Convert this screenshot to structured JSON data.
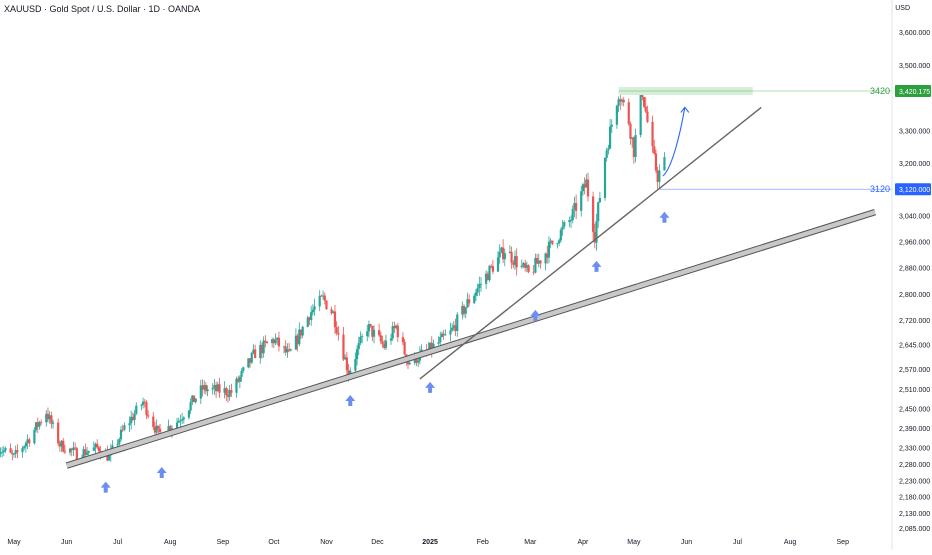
{
  "header": {
    "symbol_title": "XAUUSD · Gold Spot / U.S. Dollar · 1D · OANDA",
    "currency": "USD"
  },
  "colors": {
    "up": "#26a69a",
    "down": "#ef5350",
    "support_line": "#b5b5b5",
    "trend_line": "#666666",
    "arrow": "#6b8ef0",
    "target": "#2e9f3d",
    "stop": "#2962ff",
    "target_zone": "#d6efd8",
    "axis_text": "#131722"
  },
  "chart_data": {
    "type": "candlestick",
    "symbol": "XAUUSD",
    "timeframe": "1D",
    "x_range": [
      "2024-05-01",
      "2025-09-30"
    ],
    "ylim": [
      2060,
      3680
    ],
    "y_ticks": [
      {
        "value": 3600,
        "label": "3,600.000"
      },
      {
        "value": 3500,
        "label": "3,500.000"
      },
      {
        "value": 3420.175,
        "label": "3,420.175",
        "tag": "target"
      },
      {
        "value": 3300,
        "label": "3,300.000"
      },
      {
        "value": 3200,
        "label": "3,200.000"
      },
      {
        "value": 3120,
        "label": "3,120.000",
        "tag": "stop"
      },
      {
        "value": 3040,
        "label": "3,040.000"
      },
      {
        "value": 2960,
        "label": "2,960.000"
      },
      {
        "value": 2880,
        "label": "2,880.000"
      },
      {
        "value": 2800,
        "label": "2,800.000"
      },
      {
        "value": 2720,
        "label": "2,720.000"
      },
      {
        "value": 2645,
        "label": "2,645.000"
      },
      {
        "value": 2570,
        "label": "2,570.000"
      },
      {
        "value": 2510,
        "label": "2,510.000"
      },
      {
        "value": 2450,
        "label": "2,450.000"
      },
      {
        "value": 2390,
        "label": "2,390.000"
      },
      {
        "value": 2330,
        "label": "2,330.000"
      },
      {
        "value": 2280,
        "label": "2,280.000"
      },
      {
        "value": 2230,
        "label": "2,230.000"
      },
      {
        "value": 2180,
        "label": "2,180.000"
      },
      {
        "value": 2130,
        "label": "2,130.000"
      },
      {
        "value": 2085,
        "label": "2,085.000"
      }
    ],
    "x_ticks": [
      {
        "date": "2024-05-01",
        "label": "May"
      },
      {
        "date": "2024-06-01",
        "label": "Jun"
      },
      {
        "date": "2024-07-01",
        "label": "Jul"
      },
      {
        "date": "2024-08-01",
        "label": "Aug"
      },
      {
        "date": "2024-09-01",
        "label": "Sep"
      },
      {
        "date": "2024-10-01",
        "label": "Oct"
      },
      {
        "date": "2024-11-01",
        "label": "Nov"
      },
      {
        "date": "2024-12-01",
        "label": "Dec"
      },
      {
        "date": "2025-01-01",
        "label": "2025",
        "bold": true
      },
      {
        "date": "2025-02-01",
        "label": "Feb"
      },
      {
        "date": "2025-03-01",
        "label": "Mar"
      },
      {
        "date": "2025-04-01",
        "label": "Apr"
      },
      {
        "date": "2025-05-01",
        "label": "May"
      },
      {
        "date": "2025-06-01",
        "label": "Jun"
      },
      {
        "date": "2025-07-01",
        "label": "Jul"
      },
      {
        "date": "2025-08-01",
        "label": "Aug"
      },
      {
        "date": "2025-09-01",
        "label": "Sep"
      }
    ],
    "price_path": [
      [
        "2024-04-22",
        2330
      ],
      [
        "2024-05-01",
        2300
      ],
      [
        "2024-05-10",
        2360
      ],
      [
        "2024-05-20",
        2440
      ],
      [
        "2024-05-28",
        2340
      ],
      [
        "2024-06-07",
        2310
      ],
      [
        "2024-06-20",
        2330
      ],
      [
        "2024-06-26",
        2300
      ],
      [
        "2024-07-05",
        2390
      ],
      [
        "2024-07-16",
        2470
      ],
      [
        "2024-07-25",
        2370
      ],
      [
        "2024-08-05",
        2410
      ],
      [
        "2024-08-20",
        2510
      ],
      [
        "2024-09-06",
        2500
      ],
      [
        "2024-09-20",
        2620
      ],
      [
        "2024-10-01",
        2660
      ],
      [
        "2024-10-10",
        2610
      ],
      [
        "2024-10-22",
        2740
      ],
      [
        "2024-10-30",
        2785
      ],
      [
        "2024-11-05",
        2740
      ],
      [
        "2024-11-14",
        2560
      ],
      [
        "2024-11-25",
        2700
      ],
      [
        "2024-12-05",
        2640
      ],
      [
        "2024-12-12",
        2700
      ],
      [
        "2024-12-19",
        2590
      ],
      [
        "2025-01-01",
        2630
      ],
      [
        "2025-01-13",
        2680
      ],
      [
        "2025-01-24",
        2780
      ],
      [
        "2025-02-05",
        2870
      ],
      [
        "2025-02-14",
        2935
      ],
      [
        "2025-02-28",
        2860
      ],
      [
        "2025-03-12",
        2940
      ],
      [
        "2025-03-25",
        3030
      ],
      [
        "2025-04-03",
        3140
      ],
      [
        "2025-04-08",
        2980
      ],
      [
        "2025-04-14",
        3220
      ],
      [
        "2025-04-22",
        3420
      ],
      [
        "2025-04-28",
        3330
      ],
      [
        "2025-05-01",
        3240
      ],
      [
        "2025-05-06",
        3420
      ],
      [
        "2025-05-12",
        3230
      ],
      [
        "2025-05-15",
        3160
      ],
      [
        "2025-05-19",
        3200
      ]
    ],
    "support_line": {
      "from": [
        "2024-06-01",
        2275
      ],
      "to": [
        "2025-09-20",
        3050
      ]
    },
    "trend_line": {
      "from": [
        "2024-12-26",
        2540
      ],
      "to": [
        "2025-07-15",
        3370
      ]
    },
    "target_level": {
      "value": 3420.175,
      "label": "3420",
      "from": "2025-04-22",
      "to": "2025-07-10"
    },
    "stop_level": {
      "value": 3120,
      "label": "3120",
      "from": "2025-05-16"
    },
    "projection": [
      [
        "2025-05-18",
        3160
      ],
      [
        "2025-05-23",
        3180
      ],
      [
        "2025-05-28",
        3280
      ],
      [
        "2025-05-31",
        3370
      ]
    ],
    "arrows": [
      {
        "date": "2024-06-24",
        "value": 2275
      },
      {
        "date": "2024-07-27",
        "value": 2320
      },
      {
        "date": "2024-11-15",
        "value": 2540
      },
      {
        "date": "2025-01-01",
        "value": 2580
      },
      {
        "date": "2025-03-04",
        "value": 2800
      },
      {
        "date": "2025-04-09",
        "value": 2950
      },
      {
        "date": "2025-05-19",
        "value": 3100
      }
    ]
  }
}
